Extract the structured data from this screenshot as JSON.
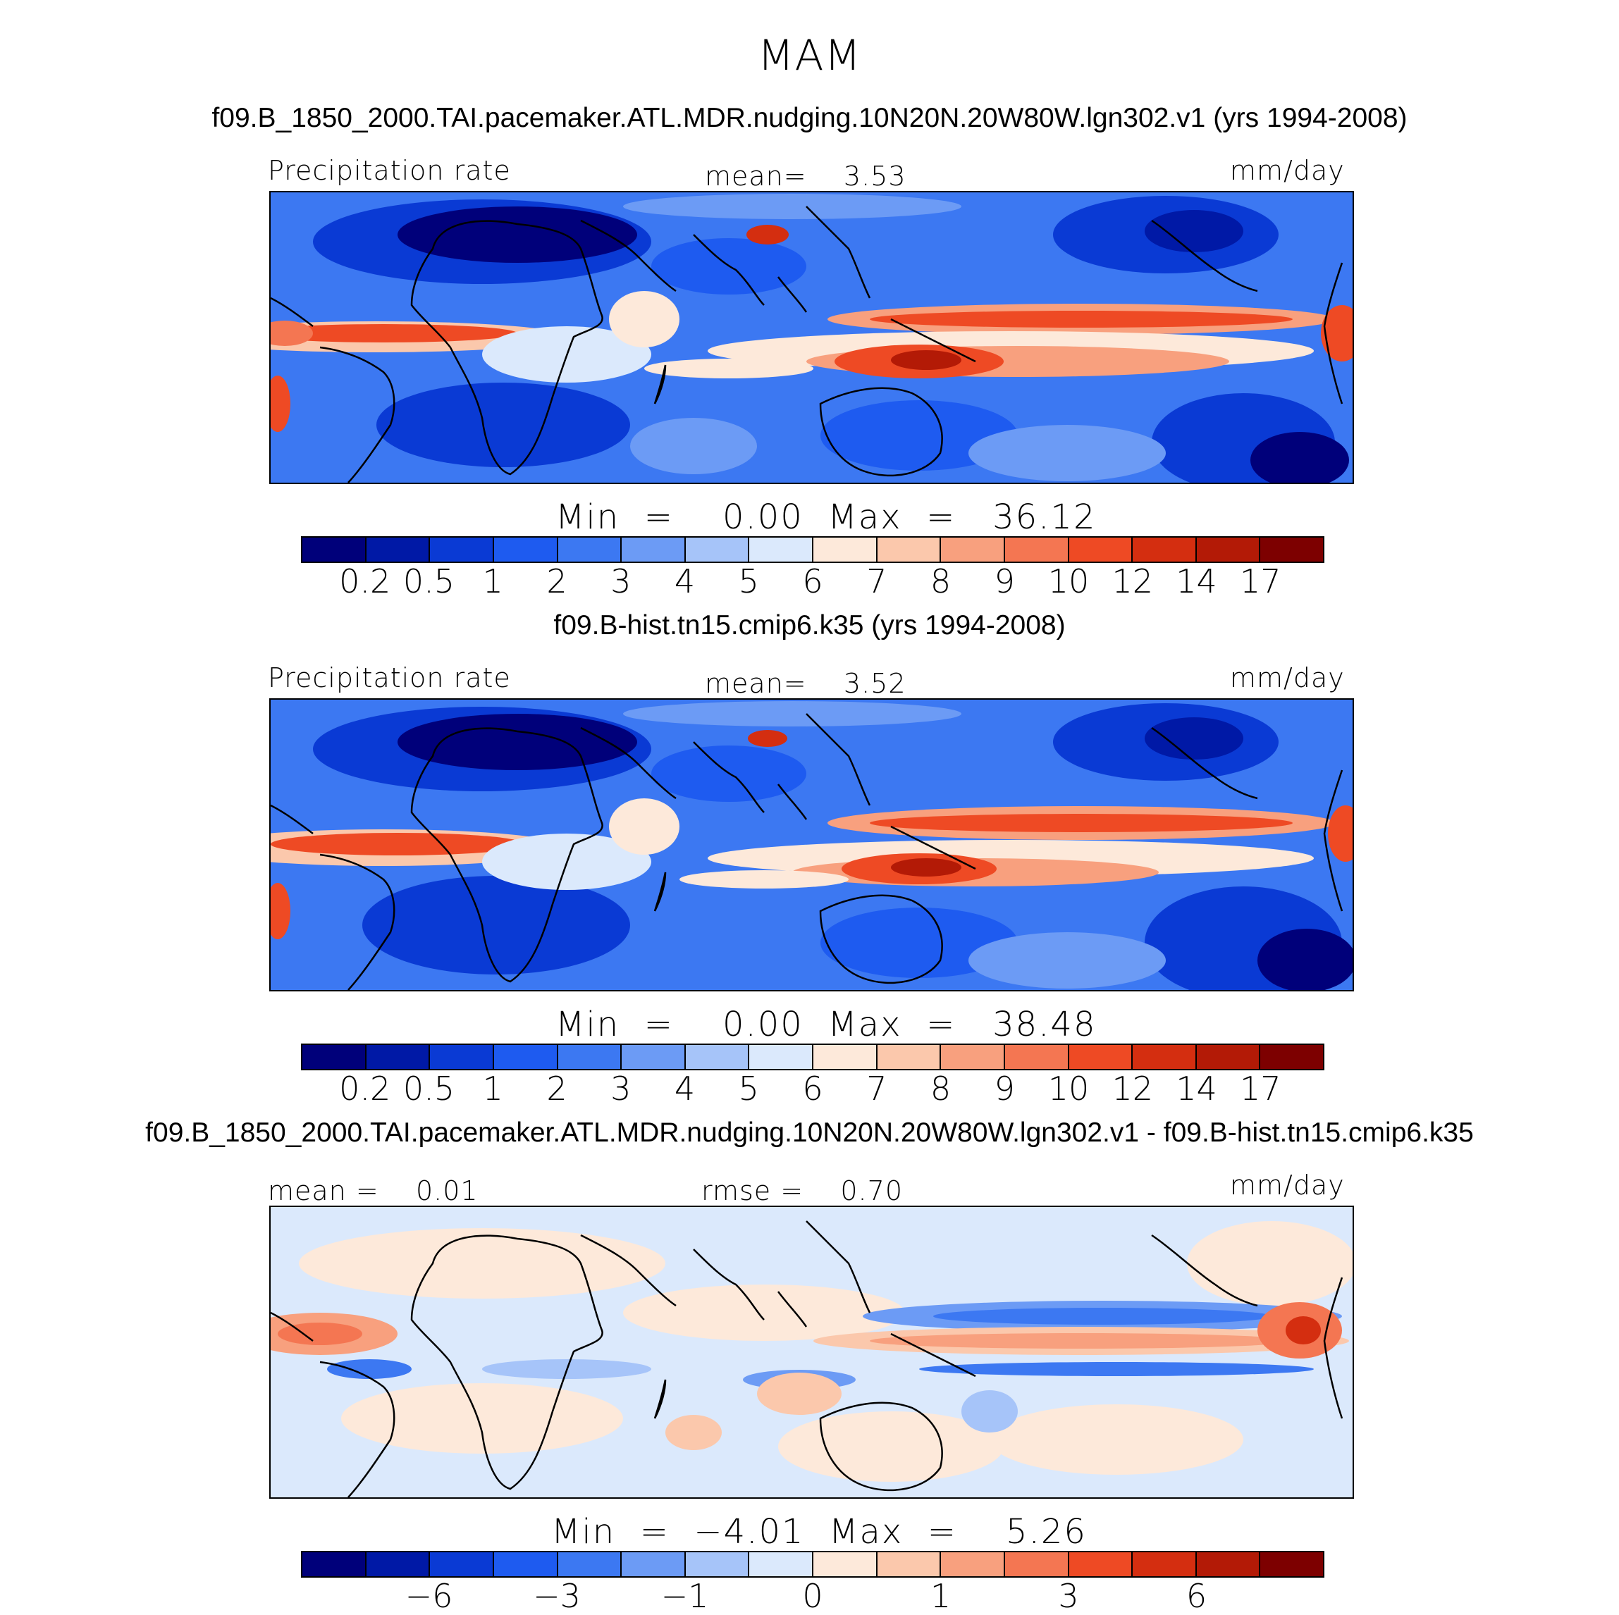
{
  "figure": {
    "title": "MAM",
    "units": "mm/day",
    "variable": "Precipitation rate"
  },
  "panels": [
    {
      "case_title": "f09.B_1850_2000.TAI.pacemaker.ATL.MDR.nudging.10N20N.20W80W.lgn302.v1 (yrs 1994-2008)",
      "left_label": "Precipitation rate",
      "center_label": "mean=    3.53",
      "right_label": "mm/day",
      "minmax": "Min  =    0.00  Max  =   36.12",
      "kind": "abs"
    },
    {
      "case_title": "f09.B-hist.tn15.cmip6.k35 (yrs 1994-2008)",
      "left_label": "Precipitation rate",
      "center_label": "mean=    3.52",
      "right_label": "mm/day",
      "minmax": "Min  =    0.00  Max  =   38.48",
      "kind": "abs"
    },
    {
      "case_title": "f09.B_1850_2000.TAI.pacemaker.ATL.MDR.nudging.10N20N.20W80W.lgn302.v1 - f09.B-hist.tn15.cmip6.k35",
      "left_label": "mean =    0.01",
      "center_label": "rmse =    0.70",
      "right_label": "mm/day",
      "minmax": "Min  =  −4.01  Max  =    5.26",
      "kind": "diff"
    }
  ],
  "colorbar_abs": {
    "colors": [
      "#00007a",
      "#0019a6",
      "#0a3ad4",
      "#1e5bf0",
      "#3c78f2",
      "#6c9bf5",
      "#a6c4f9",
      "#dbe9fc",
      "#fde9da",
      "#fbc8ac",
      "#f8a07e",
      "#f47652",
      "#ee4a24",
      "#d42e10",
      "#b31a06",
      "#7d0000"
    ],
    "ticks": [
      "0.2",
      "0.5",
      "1",
      "2",
      "3",
      "4",
      "5",
      "6",
      "7",
      "8",
      "9",
      "10",
      "12",
      "14",
      "17"
    ]
  },
  "colorbar_diff": {
    "colors": [
      "#00007a",
      "#0019a6",
      "#0a3ad4",
      "#1e5bf0",
      "#3c78f2",
      "#6c9bf5",
      "#a6c4f9",
      "#dbe9fc",
      "#fde9da",
      "#fbc8ac",
      "#f8a07e",
      "#f47652",
      "#ee4a24",
      "#d42e10",
      "#b31a06",
      "#7d0000"
    ],
    "ticks": [
      "−6",
      "−3",
      "−1",
      "0",
      "1",
      "3",
      "6"
    ]
  }
}
